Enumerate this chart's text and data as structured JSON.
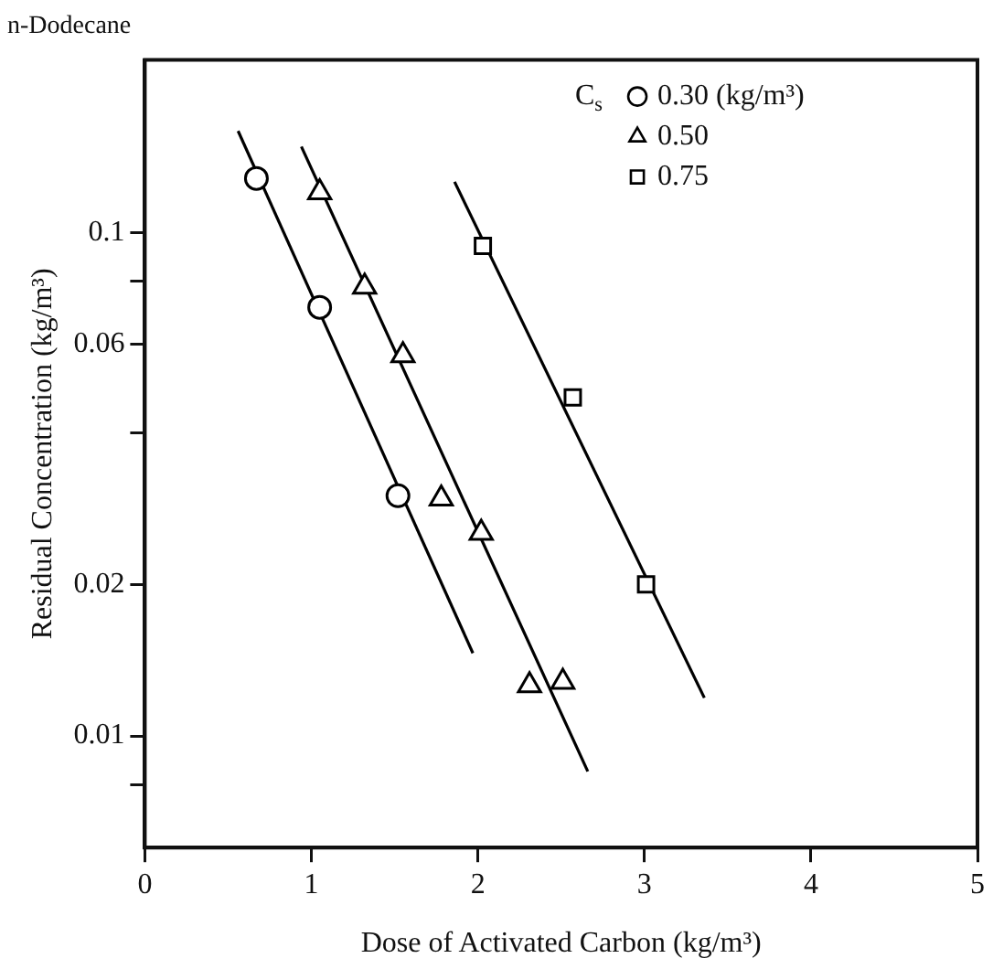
{
  "chart_data": {
    "type": "scatter",
    "title": "n-Dodecane",
    "xlabel": "Dose of Activated Carbon (kg/m³)",
    "ylabel": "Residual Concentration (kg/m³)",
    "legend_title": "C$_{s}$",
    "legend": "top right",
    "grid": false,
    "log": "y",
    "xlim": [
      0,
      5
    ],
    "xticks": [
      0,
      1,
      2,
      3,
      4,
      5
    ],
    "ylim": [
      0.006,
      0.22
    ],
    "yticks": [
      {
        "value": 0.008,
        "label": null
      },
      0.01,
      0.02,
      {
        "value": 0.04,
        "label": null
      },
      0.06,
      {
        "value": 0.08,
        "label": null
      },
      0.1
    ],
    "series": [
      {
        "name": "0.30 (kg/m³)",
        "color": "#000000",
        "marker": "circle",
        "x": [
          0.67,
          1.05,
          1.52
        ],
        "values": [
          0.128,
          0.071,
          0.03
        ]
      },
      {
        "name": "0.50",
        "color": "#000000",
        "marker": "triangle",
        "x": [
          1.05,
          1.32,
          1.55,
          1.78,
          2.02,
          2.31,
          2.51
        ],
        "values": [
          0.12,
          0.078,
          0.057,
          0.0296,
          0.0253,
          0.0126,
          0.0128
        ]
      },
      {
        "name": "0.75",
        "color": "#000000",
        "marker": "square",
        "x": [
          2.03,
          2.57,
          3.01
        ],
        "values": [
          0.094,
          0.047,
          0.02
        ]
      },
      {
        "type": "line",
        "color": "#000000",
        "marker": "none",
        "x": [
          0.56,
          1.97
        ],
        "values": [
          0.159,
          0.0146
        ]
      },
      {
        "type": "line",
        "color": "#000000",
        "marker": "none",
        "x": [
          0.94,
          2.66
        ],
        "values": [
          0.148,
          0.0085
        ]
      },
      {
        "type": "line",
        "color": "#000000",
        "marker": "none",
        "x": [
          1.86,
          3.36
        ],
        "values": [
          0.126,
          0.0119
        ]
      }
    ]
  }
}
